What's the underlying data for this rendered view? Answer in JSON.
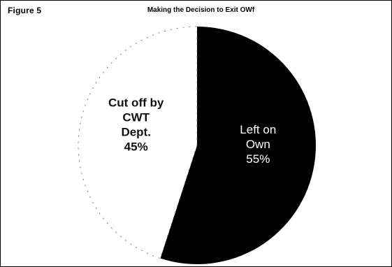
{
  "figure": {
    "label": "Figure 5"
  },
  "chart_data": {
    "type": "pie",
    "title": "Making the Decision to Exit OWf",
    "slices": [
      {
        "label_lines": [
          "Left on",
          "Own",
          "55%"
        ],
        "value": 55,
        "color": "#000000"
      },
      {
        "label_lines": [
          "Cut off by",
          "CWT",
          "Dept.",
          "45%"
        ],
        "value": 45,
        "color": "#ffffff"
      }
    ]
  }
}
